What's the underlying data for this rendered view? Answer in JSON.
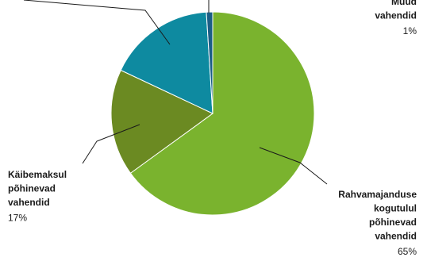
{
  "chart_data": {
    "type": "pie",
    "categories": [
      "Rahvamajanduse kogutulul põhinevad vahendid",
      "Käibemaksul põhinevad vahendid",
      null,
      "Muud vahendid"
    ],
    "values": [
      65,
      17,
      17,
      1
    ],
    "value_labels": [
      "65%",
      "17%",
      null,
      "1%"
    ],
    "colors": [
      "#7ab32e",
      "#6b8a22",
      "#0e8aa0",
      "#1b5e86"
    ]
  }
}
